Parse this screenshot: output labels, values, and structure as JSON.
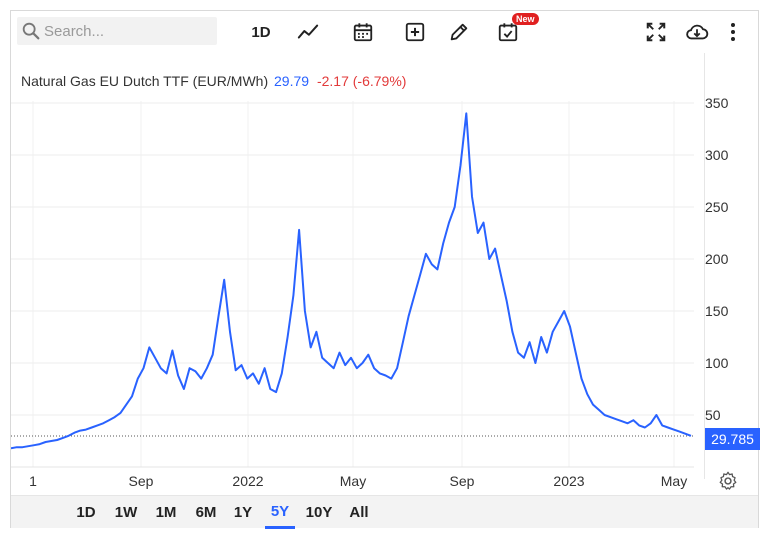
{
  "toolbar": {
    "search_placeholder": "Search...",
    "interval_label": "1D",
    "new_badge": "New"
  },
  "header": {
    "instrument": "Natural Gas EU Dutch TTF (EUR/MWh)",
    "last": "29.79",
    "change": "-2.17 (-6.79%)"
  },
  "last_price_tag": "29.785",
  "ranges": [
    "1D",
    "1W",
    "1M",
    "6M",
    "1Y",
    "5Y",
    "10Y",
    "All"
  ],
  "active_range": "5Y",
  "colors": {
    "line": "#2962ff",
    "negative": "#e23a3a",
    "accent": "#2962ff"
  },
  "chart_data": {
    "type": "line",
    "title": "",
    "xlabel": "",
    "ylabel": "",
    "x_tick_labels": [
      "1",
      "Sep",
      "2022",
      "May",
      "Sep",
      "2023",
      "May"
    ],
    "y_tick_labels": [
      "50",
      "100",
      "150",
      "200",
      "250",
      "300",
      "350"
    ],
    "ylim": [
      0,
      380
    ],
    "grid": true,
    "series": [
      {
        "values": [
          18,
          19,
          19,
          20,
          21,
          22,
          24,
          25,
          26,
          28,
          30,
          33,
          35,
          36,
          38,
          40,
          42,
          45,
          48,
          52,
          60,
          68,
          85,
          95,
          115,
          105,
          95,
          90,
          112,
          88,
          75,
          95,
          92,
          85,
          95,
          108,
          145,
          180,
          130,
          93,
          98,
          85,
          90,
          80,
          95,
          75,
          72,
          90,
          125,
          165,
          228,
          150,
          115,
          130,
          105,
          100,
          95,
          110,
          98,
          105,
          95,
          100,
          108,
          95,
          90,
          88,
          85,
          95,
          120,
          145,
          165,
          185,
          205,
          195,
          190,
          215,
          235,
          250,
          290,
          340,
          260,
          225,
          235,
          200,
          210,
          185,
          160,
          130,
          110,
          105,
          120,
          100,
          125,
          110,
          130,
          140,
          150,
          135,
          110,
          85,
          70,
          60,
          55,
          50,
          48,
          46,
          44,
          42,
          45,
          40,
          38,
          42,
          50,
          40,
          38,
          36,
          34,
          32,
          30
        ]
      }
    ]
  }
}
